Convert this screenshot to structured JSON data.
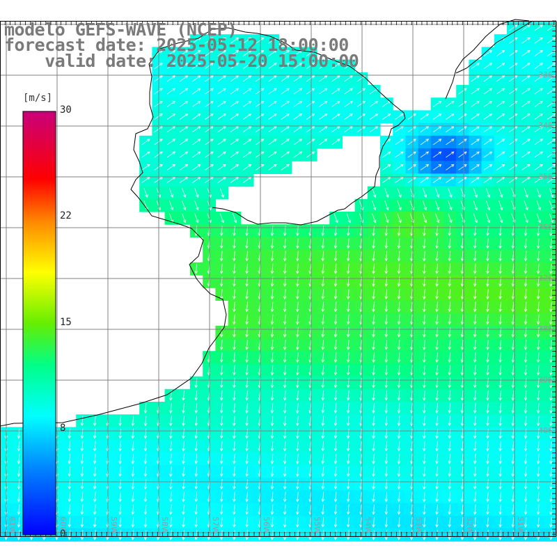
{
  "title": {
    "model": "modelo GEFS-WAVE (NCEP)",
    "forecast": "forecast date: 2025-05-12 18:00:00",
    "valid": "    valid date: 2025-05-20 15:00:00"
  },
  "colorbar": {
    "unit": "[m/s]",
    "ticks": [
      "30",
      "22",
      "15",
      "8",
      "0"
    ],
    "range": [
      0,
      30
    ]
  },
  "lon_labels": [
    "61W",
    "60W",
    "59W",
    "58W",
    "57W",
    "56W",
    "55W",
    "54W",
    "53W",
    "52W",
    "51W"
  ],
  "lat_labels": [
    "33S",
    "34S",
    "35S",
    "36S",
    "37S",
    "38S",
    "39S",
    "40S"
  ],
  "colors": {
    "land": "#ffffff",
    "grid": "#7f7f7f",
    "coast": "#000000",
    "arrow": "#ffffff",
    "label": "#7a7a7a"
  }
}
